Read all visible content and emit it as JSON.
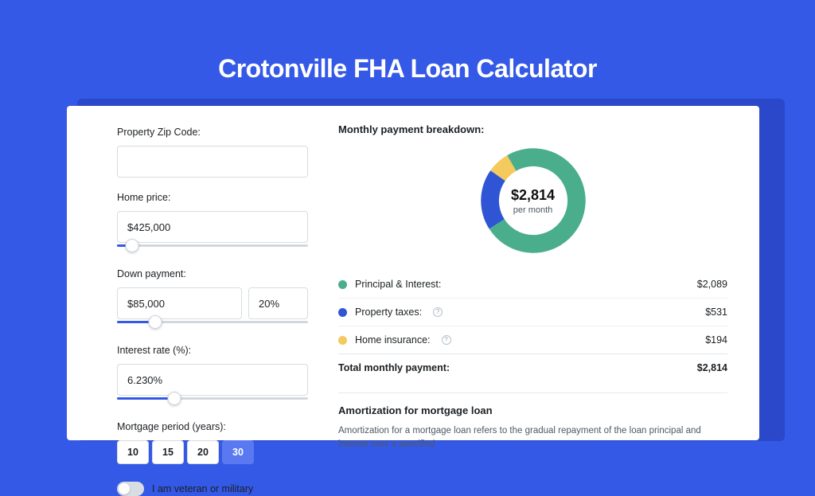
{
  "colors": {
    "page_bg": "#3459e6",
    "shadow_card": "#2a48c9",
    "card_bg": "#ffffff",
    "input_border": "#d7dce1",
    "slider_fill": "#3459e6",
    "slider_track": "#d2d7dd",
    "period_active_bg": "#5a79f0"
  },
  "hero": {
    "title": "Crotonville FHA Loan Calculator"
  },
  "form": {
    "zip": {
      "label": "Property Zip Code:",
      "value": ""
    },
    "home_price": {
      "label": "Home price:",
      "value": "$425,000",
      "slider_fill_pct": 7,
      "thumb_pct": 8
    },
    "down_payment": {
      "label": "Down payment:",
      "amount": "$85,000",
      "pct": "20%",
      "slider_fill_pct": 19,
      "thumb_pct": 20
    },
    "interest": {
      "label": "Interest rate (%):",
      "value": "6.230%",
      "slider_fill_pct": 29,
      "thumb_pct": 30
    },
    "period": {
      "label": "Mortgage period (years):",
      "options": [
        "10",
        "15",
        "20",
        "30"
      ],
      "selected_index": 3
    },
    "veteran": {
      "label": "I am veteran or military",
      "on": false
    }
  },
  "breakdown": {
    "title": "Monthly payment breakdown:",
    "center_amount": "$2,814",
    "center_sub": "per month",
    "donut": {
      "type": "donut",
      "inner_radius": 38,
      "outer_radius": 58,
      "start_angle_deg": -120,
      "background": "#ffffff",
      "slices": [
        {
          "label": "Principal & Interest:",
          "value": 2089,
          "color": "#4aae8c",
          "tooltip": false
        },
        {
          "label": "Property taxes:",
          "value": 531,
          "color": "#2f55d4",
          "tooltip": true
        },
        {
          "label": "Home insurance:",
          "value": 194,
          "color": "#f4c95d",
          "tooltip": true
        }
      ]
    },
    "rows": [
      {
        "label": "Principal & Interest:",
        "value": "$2,089",
        "dot": "#4aae8c",
        "tooltip": false
      },
      {
        "label": "Property taxes:",
        "value": "$531",
        "dot": "#2f55d4",
        "tooltip": true
      },
      {
        "label": "Home insurance:",
        "value": "$194",
        "dot": "#f4c95d",
        "tooltip": true
      }
    ],
    "total": {
      "label": "Total monthly payment:",
      "value": "$2,814"
    }
  },
  "amortization": {
    "title": "Amortization for mortgage loan",
    "text": "Amortization for a mortgage loan refers to the gradual repayment of the loan principal and interest over a specified"
  }
}
